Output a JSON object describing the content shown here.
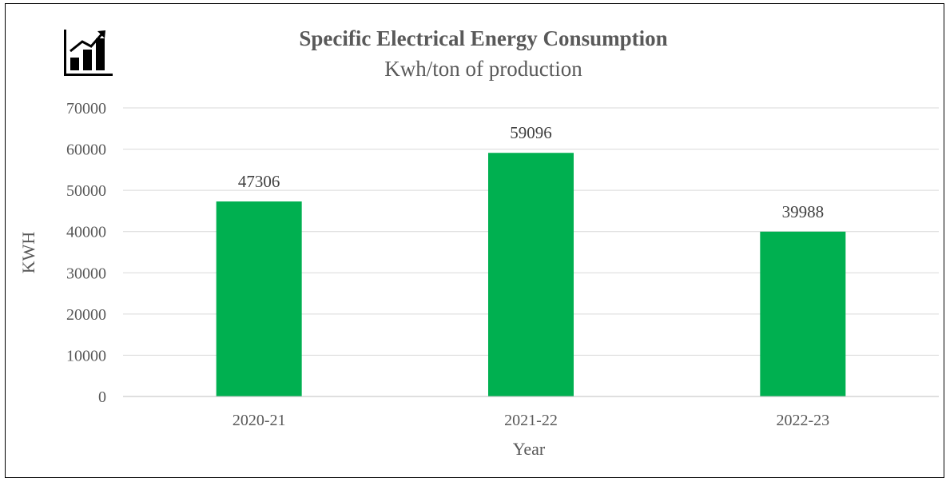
{
  "chart_data": {
    "type": "bar",
    "title": "Specific Electrical Energy Consumption",
    "subtitle": "Kwh/ton of production",
    "xlabel": "Year",
    "ylabel": "KWH",
    "categories": [
      "2020-21",
      "2021-22",
      "2022-23"
    ],
    "values": [
      47306,
      59096,
      39988
    ],
    "data_labels": [
      "47306",
      "59096",
      "39988"
    ],
    "ylim": [
      0,
      70000
    ],
    "yticks": [
      "0",
      "10000",
      "20000",
      "30000",
      "40000",
      "50000",
      "60000",
      "70000"
    ],
    "grid": true,
    "legend": "none",
    "bar_color": "#00b050",
    "icon": "bar-chart-growth-icon"
  }
}
